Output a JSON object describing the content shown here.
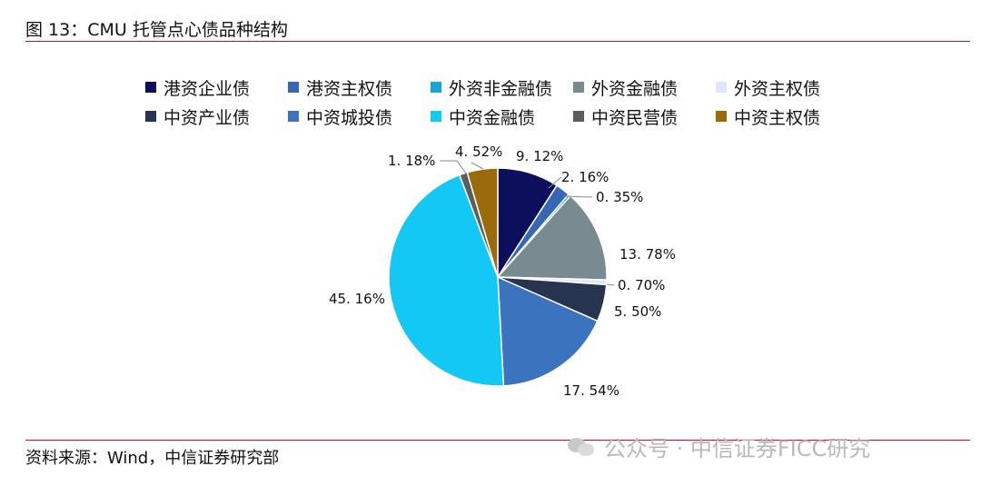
{
  "figure": {
    "title": "图 13：CMU 托管点心债品种结构",
    "source": "资料来源：Wind，中信证券研究部",
    "watermark": "公众号 · 中信证券FICC研究"
  },
  "chart_data": {
    "type": "pie",
    "legend_position": "top",
    "slices": [
      {
        "name": "港资企业债",
        "value": 9.12,
        "label": "9. 12%",
        "color": "#0b0f5c"
      },
      {
        "name": "港资主权债",
        "value": 2.16,
        "label": "2. 16%",
        "color": "#3567b5"
      },
      {
        "name": "外资非金融债",
        "value": 0.35,
        "label": "0. 35%",
        "color": "#1aa3d4"
      },
      {
        "name": "外资金融债",
        "value": 13.78,
        "label": "13. 78%",
        "color": "#7a8a91"
      },
      {
        "name": "外资主权债",
        "value": 0.7,
        "label": "0. 70%",
        "color": "#dfe7f6"
      },
      {
        "name": "中资产业债",
        "value": 5.5,
        "label": "5. 50%",
        "color": "#26344f"
      },
      {
        "name": "中资城投债",
        "value": 17.54,
        "label": "17. 54%",
        "color": "#3b73bf"
      },
      {
        "name": "中资金融债",
        "value": 45.16,
        "label": "45. 16%",
        "color": "#14c8f5"
      },
      {
        "name": "中资民营债",
        "value": 1.18,
        "label": "1. 18%",
        "color": "#595e63"
      },
      {
        "name": "中资主权债",
        "value": 4.52,
        "label": "4. 52%",
        "color": "#9a6b0a"
      }
    ]
  }
}
